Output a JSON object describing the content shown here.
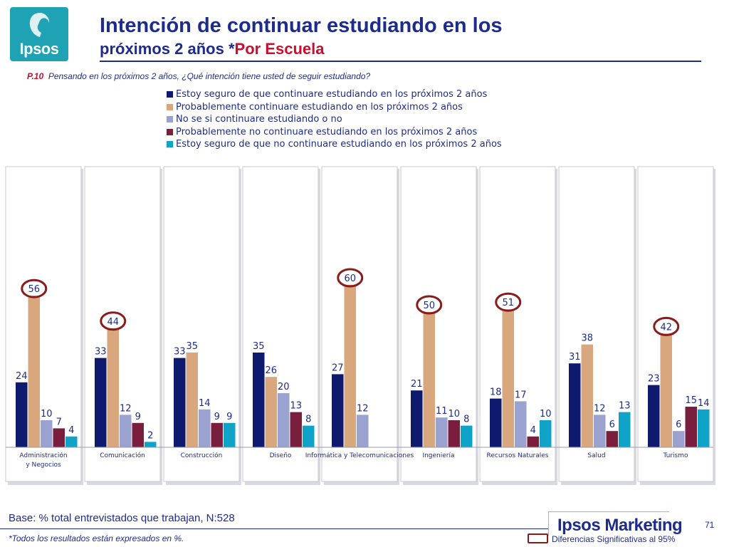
{
  "brand": {
    "logo_text": "Ipsos",
    "marketing": "Ipsos Marketing",
    "page_number": "71"
  },
  "header": {
    "title_line1": "Intención de continuar estudiando en los",
    "title_line2": "próximos 2 años *",
    "title_line2_red": "Por Escuela",
    "question_code": "P.10",
    "question_text": "Pensando en los próximos 2 años, ¿Qué intención tiene usted de seguir estudiando?"
  },
  "footer": {
    "base": "Base: % total entrevistados que trabajan, N:528",
    "note": "*Todos los resultados están expresados en %.",
    "significance": "Diferencias Significativas al 95%"
  },
  "colors": {
    "accent": "#1d2c8a",
    "red": "#c8102e",
    "highlight_circle": "#8b1a1a",
    "logo": "#1fa2b3"
  },
  "chart_data": {
    "type": "bar",
    "categories": [
      "Administración y Negocios",
      "Comunicación",
      "Construcción",
      "Diseño",
      "Informática y Telecomunicaciones",
      "Ingeniería",
      "Recursos Naturales",
      "Salud",
      "Turismo"
    ],
    "ylim": [
      0,
      70
    ],
    "legend_position": "top",
    "series": [
      {
        "name": "Estoy seguro de que continuare estudiando en los próximos 2 años",
        "color": "#0d1a6e",
        "values": [
          24,
          33,
          33,
          35,
          27,
          21,
          18,
          31,
          23
        ]
      },
      {
        "name": "Probablemente continuare estudiando en los próximos 2 años",
        "color": "#d9a77e",
        "values": [
          56,
          44,
          35,
          26,
          60,
          50,
          51,
          38,
          42
        ]
      },
      {
        "name": "No se si continuare estudiando o no",
        "color": "#9aa2cf",
        "values": [
          10,
          12,
          14,
          20,
          12,
          11,
          17,
          12,
          6
        ]
      },
      {
        "name": "Probablemente no continuare estudiando en los próximos 2 años",
        "color": "#7a1e3e",
        "values": [
          7,
          9,
          9,
          13,
          null,
          10,
          4,
          6,
          15
        ]
      },
      {
        "name": "Estoy seguro de que no continuare estudiando en los próximos 2 años",
        "color": "#0fa3c8",
        "values": [
          4,
          2,
          9,
          8,
          null,
          8,
          10,
          13,
          14
        ]
      }
    ],
    "significant_highlights": [
      {
        "category": "Administración y Negocios",
        "series": 1
      },
      {
        "category": "Comunicación",
        "series": 1
      },
      {
        "category": "Informática y Telecomunicaciones",
        "series": 1
      },
      {
        "category": "Ingeniería",
        "series": 1
      },
      {
        "category": "Recursos Naturales",
        "series": 1
      },
      {
        "category": "Turismo",
        "series": 1
      }
    ]
  }
}
